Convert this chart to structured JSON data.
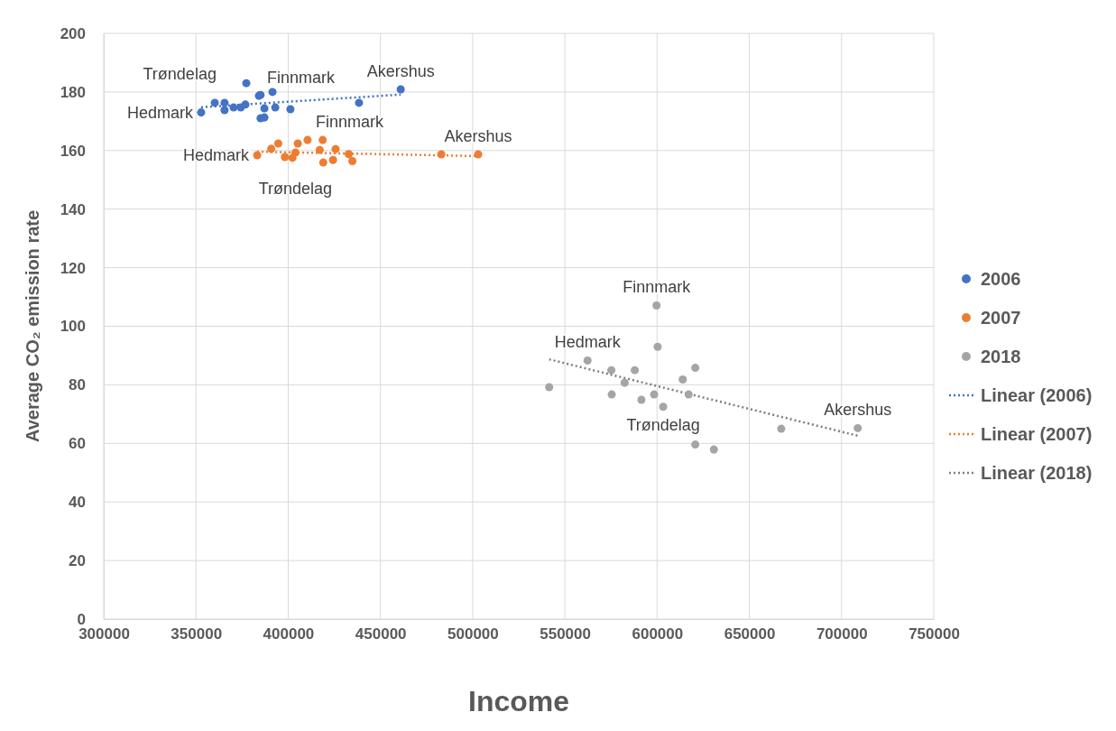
{
  "chart_data": {
    "type": "scatter",
    "xlabel": "Income",
    "ylabel": "Average CO₂ emission rate",
    "xlim": [
      300000,
      750000
    ],
    "xticks": [
      300000,
      350000,
      400000,
      450000,
      500000,
      550000,
      600000,
      650000,
      700000,
      750000
    ],
    "ylim": [
      0,
      200
    ],
    "yticks": [
      0,
      20,
      40,
      60,
      80,
      100,
      120,
      140,
      160,
      180,
      200
    ],
    "grid": true,
    "legend": "right",
    "series": [
      {
        "name": "2006",
        "marker": "circle",
        "color": "#4472c4",
        "x": [
          352800,
          360200,
          365500,
          365500,
          370400,
          374300,
          376800,
          377300,
          384100,
          385000,
          391500,
          387100,
          393000,
          401200,
          385000,
          387100,
          438400,
          461000
        ],
        "values": [
          173,
          176.3,
          176.3,
          173.8,
          174.7,
          174.7,
          175.7,
          183,
          178.7,
          179,
          180,
          174.4,
          174.7,
          174.1,
          171,
          171.3,
          176.3,
          180.9
        ]
      },
      {
        "name": "2007",
        "marker": "circle",
        "color": "#ed7d31",
        "x": [
          383200,
          390800,
          394600,
          398200,
          402300,
          403900,
          405200,
          410500,
          417100,
          418700,
          419000,
          424300,
          425700,
          432800,
          434800,
          483000,
          503000
        ],
        "values": [
          158.4,
          160.6,
          162.4,
          157.8,
          157.5,
          159.3,
          162.4,
          163.6,
          160.2,
          163.6,
          155.9,
          156.8,
          160.5,
          158.8,
          156.4,
          158.7,
          158.7
        ]
      },
      {
        "name": "2018",
        "marker": "circle",
        "color": "#a5a5a5",
        "x": [
          541500,
          562300,
          575200,
          575400,
          587900,
          582400,
          591500,
          598400,
          599700,
          600300,
          603300,
          613900,
          617100,
          620700,
          620700,
          630800,
          667300,
          708800
        ],
        "values": [
          79.2,
          88.3,
          85,
          76.7,
          85,
          80.7,
          74.9,
          76.7,
          107.1,
          93,
          72.5,
          81.8,
          76.7,
          85.8,
          59.6,
          57.9,
          65,
          65.2
        ]
      },
      {
        "name": "Linear (2006)",
        "type": "line",
        "marker": "none",
        "line_style": "dotted",
        "color": "#4472c4",
        "x": [
          352800,
          461000
        ],
        "values": [
          174.8,
          179.1
        ]
      },
      {
        "name": "Linear (2007)",
        "type": "line",
        "marker": "none",
        "line_style": "dotted",
        "color": "#ed7d31",
        "x": [
          383200,
          503000
        ],
        "values": [
          159.6,
          158.1
        ]
      },
      {
        "name": "Linear (2018)",
        "type": "line",
        "marker": "none",
        "line_style": "dotted",
        "color": "#7f7f7f",
        "x": [
          541500,
          708800
        ],
        "values": [
          88.7,
          62.6
        ]
      }
    ],
    "annotations": [
      {
        "text": "Hedmark",
        "x": 352800,
        "y": 173
      },
      {
        "text": "Trøndelag",
        "x": 365500,
        "y": 173.8
      },
      {
        "text": "Finnmark",
        "x": 384100,
        "y": 178.7
      },
      {
        "text": "Akershus",
        "x": 461000,
        "y": 180.9
      },
      {
        "text": "Hedmark",
        "x": 383200,
        "y": 158.4
      },
      {
        "text": "Trøndelag",
        "x": 403900,
        "y": 159.3
      },
      {
        "text": "Finnmark",
        "x": 410500,
        "y": 163.6
      },
      {
        "text": "Akershus",
        "x": 503000,
        "y": 158.7
      },
      {
        "text": "Hedmark",
        "x": 562300,
        "y": 88.3
      },
      {
        "text": "Finnmark",
        "x": 599700,
        "y": 107.1
      },
      {
        "text": "Trøndelag",
        "x": 603300,
        "y": 72.5
      },
      {
        "text": "Akershus",
        "x": 708800,
        "y": 65.2
      }
    ]
  }
}
